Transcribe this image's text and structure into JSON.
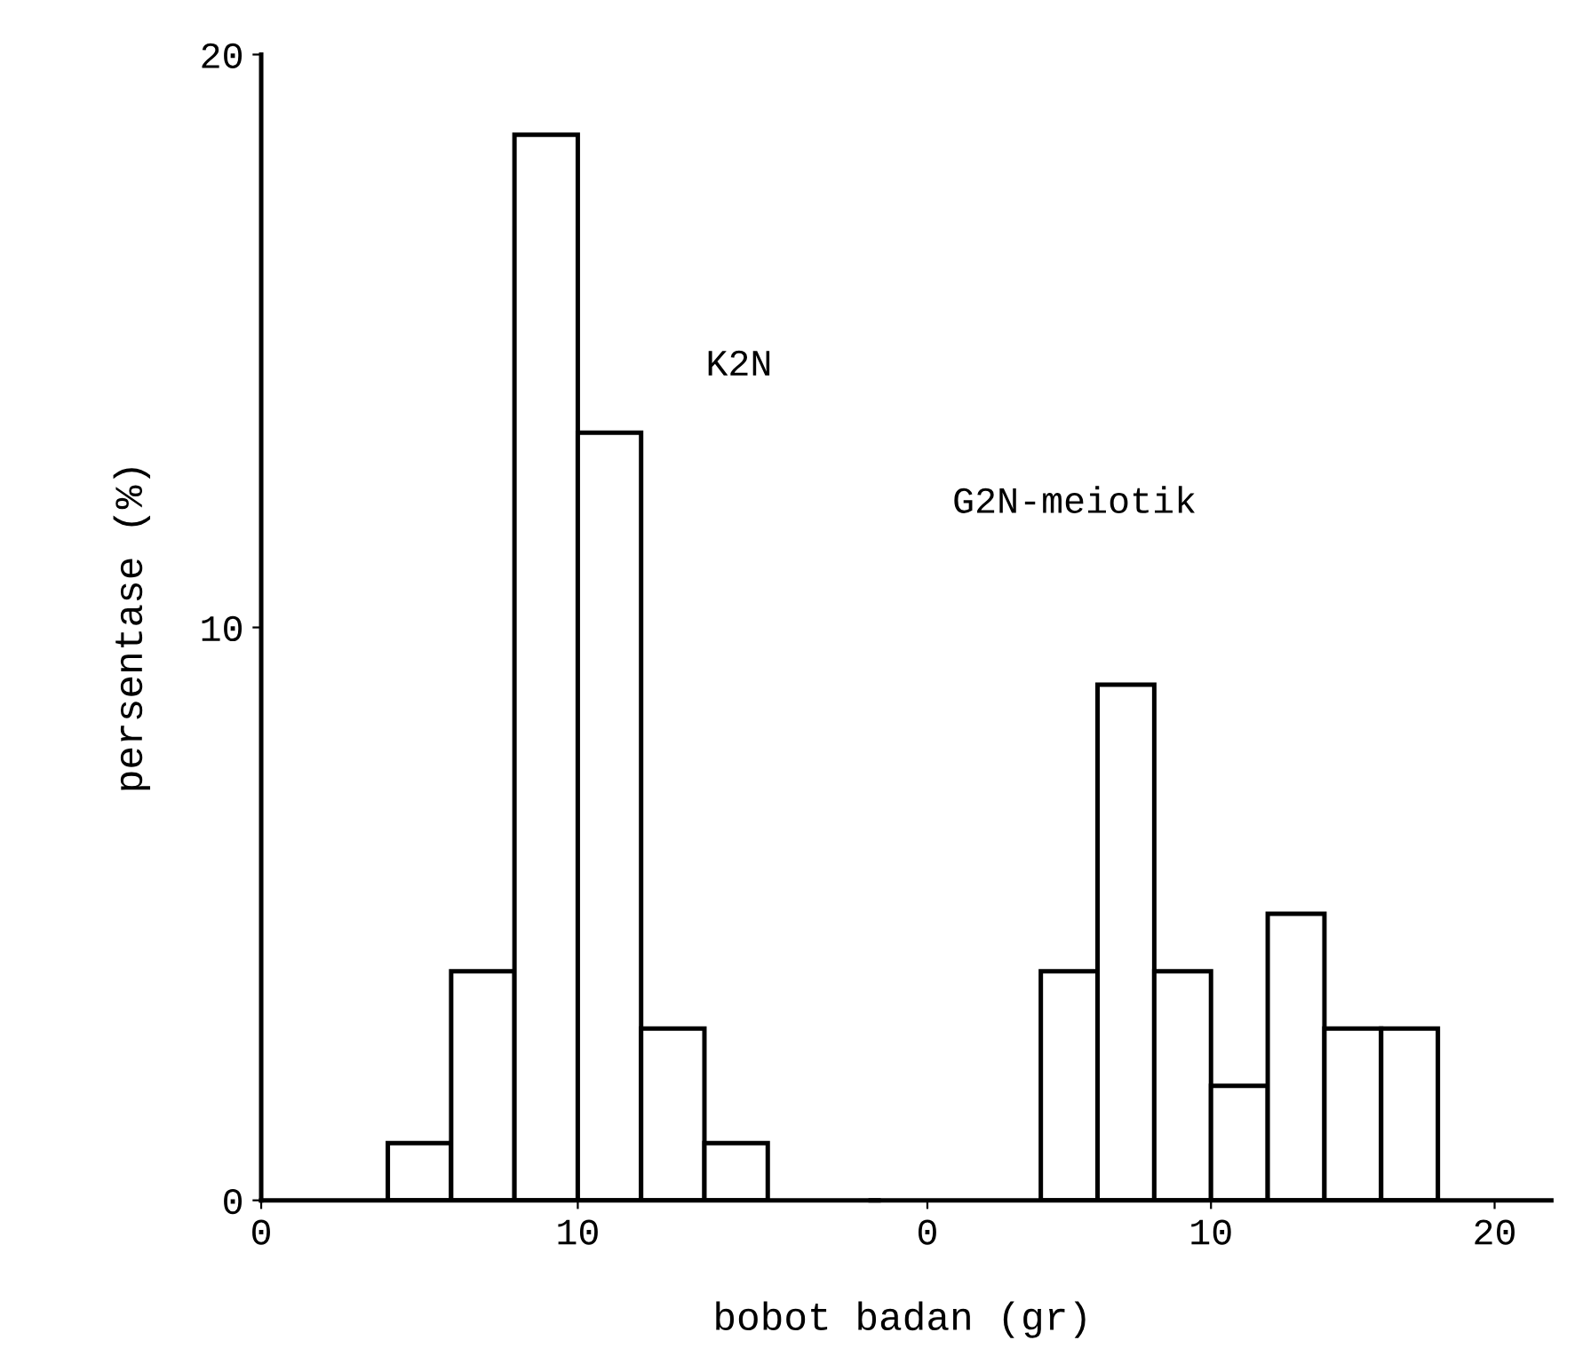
{
  "chart_data": [
    {
      "type": "histogram",
      "title": "K2N",
      "xlabel": "bobot badan (gr)",
      "ylabel": "persentase (%)",
      "bins": [
        4,
        6,
        8,
        10,
        12,
        14,
        16
      ],
      "values": [
        1,
        4,
        18.6,
        13.4,
        3,
        1
      ],
      "color": "#ffffff",
      "xlim": [
        0,
        19.5
      ],
      "xticks": [
        0,
        10
      ],
      "ylim": [
        0,
        20
      ],
      "yticks": [
        0,
        10,
        20
      ],
      "grid": false
    },
    {
      "type": "histogram",
      "title": "G2N-meiotik",
      "bins": [
        4,
        6,
        8,
        10,
        12,
        14,
        16,
        18
      ],
      "values": [
        4,
        9,
        4,
        2,
        5,
        3,
        3
      ],
      "color": "#ffffff",
      "xlim": [
        -2,
        22
      ],
      "xticks": [
        0,
        10,
        20
      ],
      "ylim": [
        0,
        20
      ],
      "tick_labels": "x",
      "grid": false
    }
  ]
}
